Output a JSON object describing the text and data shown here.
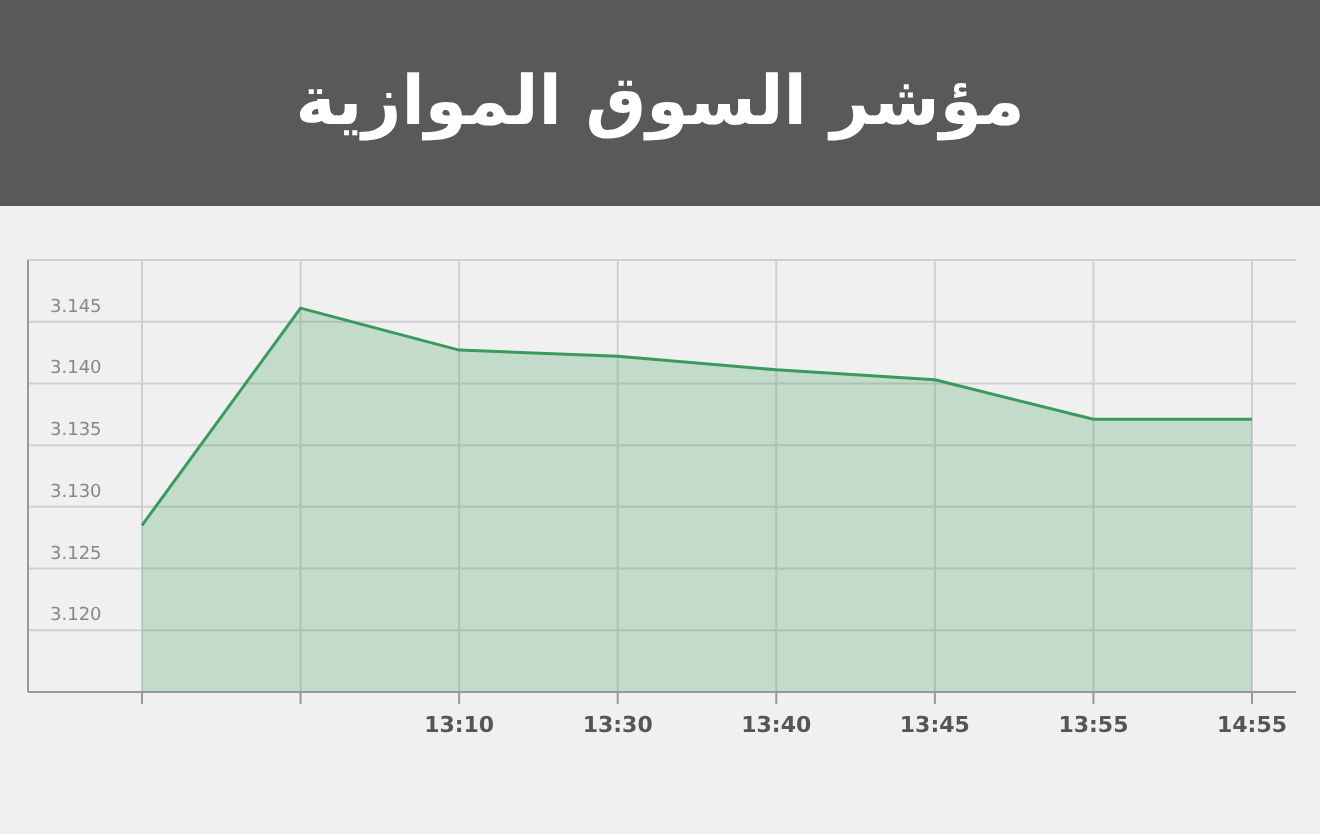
{
  "chart_data": {
    "type": "area",
    "title": "مؤشر السوق الموازية",
    "categories": [
      null,
      null,
      "13:10",
      "13:30",
      "13:40",
      "13:45",
      "13:55",
      "14:55"
    ],
    "series": [
      {
        "color": "#3a9a5c",
        "values": [
          3.1285,
          3.1461,
          3.1427,
          3.1422,
          3.1411,
          3.1403,
          3.1371,
          3.1371
        ]
      }
    ],
    "ylim": [
      3.115,
      3.15
    ],
    "yticks": [
      {
        "value": 3.12,
        "label": "3.120"
      },
      {
        "value": 3.125,
        "label": "3.125"
      },
      {
        "value": 3.13,
        "label": "3.130"
      },
      {
        "value": 3.135,
        "label": "3.135"
      },
      {
        "value": 3.14,
        "label": "3.140"
      },
      {
        "value": 3.145,
        "label": "3.145"
      }
    ],
    "grid": true
  }
}
